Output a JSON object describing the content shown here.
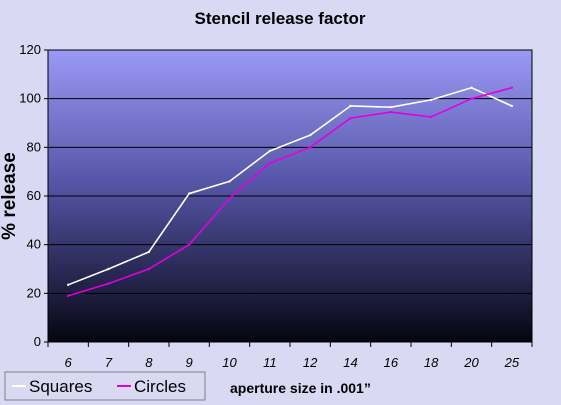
{
  "chart_data": {
    "type": "line",
    "title": "Stencil release factor",
    "xlabel": "aperture size in .001”",
    "ylabel": "% release",
    "categories": [
      "6",
      "7",
      "8",
      "9",
      "10",
      "11",
      "12",
      "14",
      "16",
      "18",
      "20",
      "25"
    ],
    "ylim": [
      0,
      120
    ],
    "yticks": [
      "0",
      "20",
      "40",
      "60",
      "80",
      "100",
      "120"
    ],
    "grid": true,
    "legend_position": "bottom-left",
    "series": [
      {
        "name": "Squares",
        "color": "#ffffff",
        "values": [
          23.5,
          30,
          37,
          61,
          66,
          78.5,
          85,
          97,
          96.5,
          99.5,
          104.5,
          97
        ]
      },
      {
        "name": "Circles",
        "color": "#e000e0",
        "values": [
          19,
          24,
          30,
          40,
          59,
          73.5,
          80,
          92,
          94.5,
          92.5,
          100,
          104.5
        ]
      }
    ]
  }
}
